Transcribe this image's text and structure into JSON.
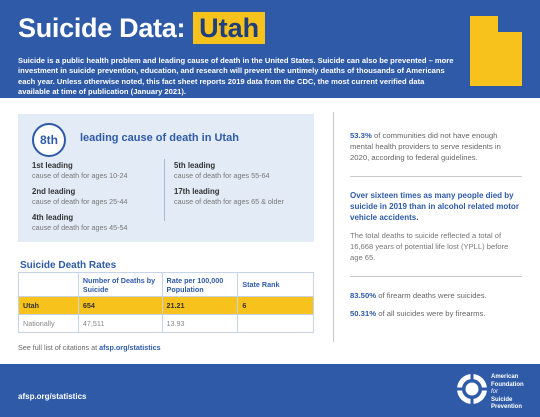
{
  "header": {
    "title": "Suicide Data:",
    "state": "Utah",
    "intro": "Suicide is a public health problem and leading cause of death in the United States. Suicide can also be prevented – more investment in suicide prevention, education, and research will prevent the untimely deaths of thousands of Americans each year. Unless otherwise noted, this fact sheet reports 2019 data from the CDC, the most current verified data available at time of publication (January 2021)."
  },
  "leading": {
    "rank": "8th",
    "title": "leading cause of death in Utah",
    "items": [
      {
        "label": "1st leading",
        "desc": "cause of death for ages 10-24"
      },
      {
        "label": "2nd leading",
        "desc": "cause of death for ages 25-44"
      },
      {
        "label": "4th leading",
        "desc": "cause of death for ages 45-54"
      },
      {
        "label": "5th leading",
        "desc": "cause of death for ages 55-64"
      },
      {
        "label": "17th leading",
        "desc": "cause of death for ages 65 & older"
      }
    ]
  },
  "rates": {
    "title": "Suicide Death Rates",
    "headers": [
      "",
      "Number of Deaths by Suicide",
      "Rate per 100,000 Population",
      "State Rank"
    ],
    "rows": [
      [
        "Utah",
        "654",
        "21.21",
        "6"
      ],
      [
        "Nationally",
        "47,511",
        "13.93",
        ""
      ]
    ]
  },
  "citation": {
    "prefix": "See full list of citations at",
    "link": "afsp.org/statistics"
  },
  "stats": {
    "s1_value": "53.3%",
    "s1_text": "of communities did not have enough mental health providers to serve residents in 2020, according to federal guidelines.",
    "s2": "Over sixteen times as many people died by suicide in 2019 than in alcohol related motor vehicle accidents.",
    "s3": "The total deaths to suicide reflected a total of 16,668 years of potential life lost (YPLL) before age 65.",
    "s4_value": "83.50%",
    "s4_text": "of firearm deaths were suicides.",
    "s5_value": "50.31%",
    "s5_text": "of all suicides were by firearms."
  },
  "footer": {
    "url": "afsp.org/statistics",
    "org_line1": "American",
    "org_line2": "Foundation",
    "org_line3": "for",
    "org_line4": "Suicide",
    "org_line5": "Prevention"
  },
  "colors": {
    "brand_blue": "#2e5aa8",
    "accent_yellow": "#f6c21b",
    "panel_bg": "#e3ebf6"
  }
}
